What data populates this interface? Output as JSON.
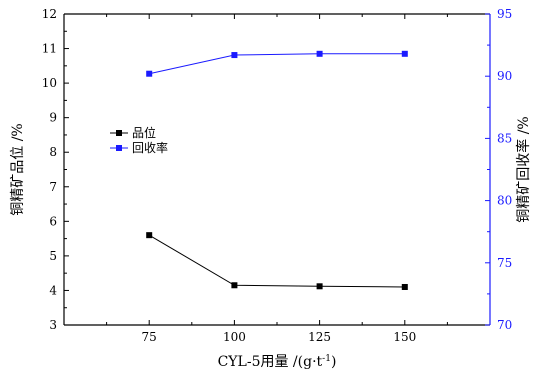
{
  "chart_data": {
    "type": "line",
    "x": [
      75,
      100,
      125,
      150
    ],
    "xlabel": "CYL-5用量 /(g·t",
    "xlabel_sup": "-1",
    "xlabel_close": ")",
    "xlim": [
      50,
      175
    ],
    "xticks": [
      75,
      100,
      125,
      150
    ],
    "y_left": {
      "label": "铜精矿品位 /%",
      "lim": [
        3,
        12
      ],
      "ticks": [
        3,
        4,
        5,
        6,
        7,
        8,
        9,
        10,
        11,
        12
      ]
    },
    "y_right": {
      "label": "铜精矿回收率 /%",
      "lim": [
        70,
        95
      ],
      "ticks": [
        70,
        75,
        80,
        85,
        90,
        95
      ],
      "color": "#1a1aff"
    },
    "series": [
      {
        "name": "品位",
        "axis": "left",
        "color": "#000000",
        "values": [
          5.6,
          4.15,
          4.12,
          4.1
        ]
      },
      {
        "name": "回收率",
        "axis": "right",
        "color": "#1a1aff",
        "values": [
          90.2,
          91.7,
          91.8,
          91.8
        ]
      }
    ],
    "legend_position": "left-middle",
    "grid": false
  }
}
